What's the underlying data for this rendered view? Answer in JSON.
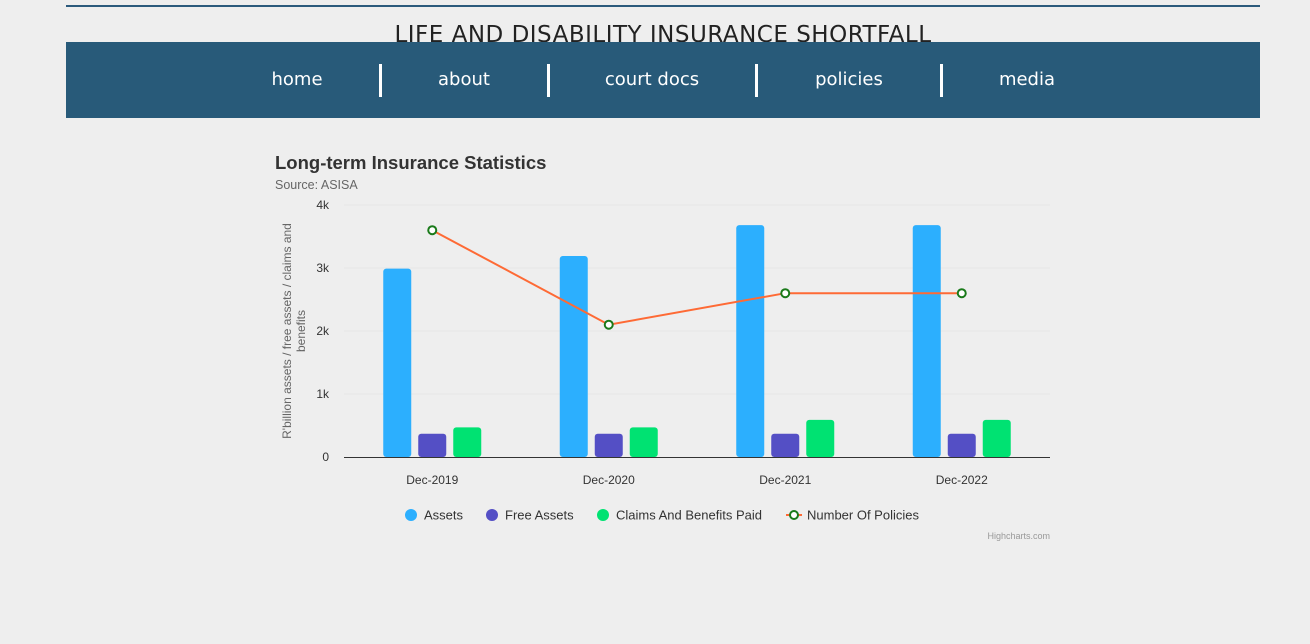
{
  "site": {
    "title": "LIFE AND DISABILITY INSURANCE SHORTFALL"
  },
  "nav": {
    "items": [
      {
        "label": "home"
      },
      {
        "label": "about"
      },
      {
        "label": "court docs"
      },
      {
        "label": "policies"
      },
      {
        "label": "media"
      }
    ]
  },
  "chart_data": {
    "type": "bar",
    "title": "Long-term Insurance Statistics",
    "subtitle": "Source: ASISA",
    "ylabel": "R'billion assets / free assets / claims and benefits",
    "xlabel": "",
    "categories": [
      "Dec-2019",
      "Dec-2020",
      "Dec-2021",
      "Dec-2022"
    ],
    "ylim": [
      0,
      4000
    ],
    "yticks": [
      {
        "value": 0,
        "label": "0"
      },
      {
        "value": 1000,
        "label": "1k"
      },
      {
        "value": 2000,
        "label": "2k"
      },
      {
        "value": 3000,
        "label": "3k"
      },
      {
        "value": 4000,
        "label": "4k"
      }
    ],
    "grid": true,
    "legend_position": "bottom-center",
    "series": [
      {
        "name": "Assets",
        "type": "column",
        "color": "#2caffe",
        "values": [
          2990,
          3190,
          3680,
          3680
        ]
      },
      {
        "name": "Free Assets",
        "type": "column",
        "color": "#544fc5",
        "values": [
          370,
          370,
          370,
          370
        ]
      },
      {
        "name": "Claims And Benefits Paid",
        "type": "column",
        "color": "#00e272",
        "values": [
          470,
          470,
          590,
          590
        ]
      },
      {
        "name": "Number Of Policies",
        "type": "line",
        "color": "#fe6a35",
        "marker_color": "#1a7a1a",
        "values": [
          3600,
          2100,
          2600,
          2600
        ]
      }
    ],
    "credits": "Highcharts.com"
  }
}
